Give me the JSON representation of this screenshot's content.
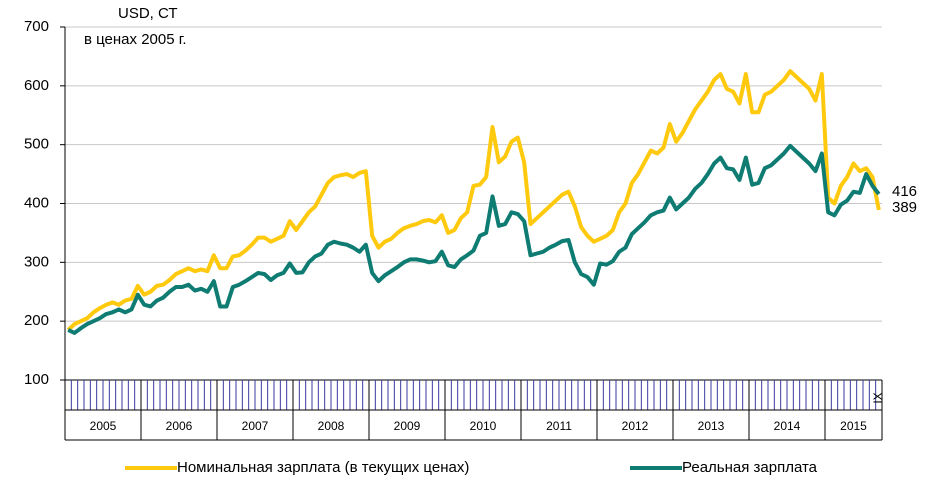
{
  "chart_data": {
    "type": "line",
    "y_label_1": "USD, СТ",
    "y_label_2": "в ценах 2005 г.",
    "years": [
      "2005",
      "2006",
      "2007",
      "2008",
      "2009",
      "2010",
      "2011",
      "2012",
      "2013",
      "2014",
      "2015"
    ],
    "categories": [
      null,
      null,
      null,
      null,
      null,
      null,
      null,
      null,
      null,
      null,
      null,
      null,
      null,
      null,
      null,
      null,
      null,
      null,
      null,
      null,
      null,
      null,
      null,
      null,
      null,
      null,
      null,
      null,
      null,
      null,
      null,
      null,
      null,
      null,
      null,
      null,
      null,
      null,
      null,
      null,
      null,
      null,
      null,
      null,
      null,
      null,
      null,
      null,
      null,
      null,
      null,
      null,
      null,
      null,
      null,
      null,
      null,
      null,
      null,
      null,
      null,
      null,
      null,
      null,
      null,
      null,
      null,
      null,
      null,
      null,
      null,
      null,
      null,
      null,
      null,
      null,
      null,
      null,
      null,
      null,
      null,
      null,
      null,
      null,
      null,
      null,
      null,
      null,
      null,
      null,
      null,
      null,
      null,
      null,
      null,
      null,
      null,
      null,
      null,
      null,
      null,
      null,
      null,
      null,
      null,
      null,
      null,
      null,
      null,
      null,
      null,
      null,
      null,
      null,
      null,
      null,
      null,
      null,
      null,
      null,
      null,
      null,
      null,
      null,
      null,
      null,
      null,
      null,
      "IX"
    ],
    "series": [
      {
        "name": "Номинальная зарплата (в текущих ценах)",
        "color": "#ffc90e",
        "values": [
          185,
          195,
          200,
          205,
          215,
          222,
          228,
          232,
          228,
          235,
          238,
          260,
          245,
          250,
          260,
          262,
          270,
          280,
          285,
          290,
          285,
          288,
          285,
          312,
          290,
          290,
          310,
          312,
          320,
          330,
          342,
          342,
          335,
          340,
          345,
          370,
          355,
          370,
          385,
          395,
          415,
          435,
          445,
          448,
          450,
          445,
          452,
          455,
          345,
          325,
          335,
          340,
          350,
          358,
          362,
          365,
          370,
          372,
          368,
          380,
          350,
          355,
          375,
          385,
          430,
          432,
          445,
          530,
          470,
          480,
          505,
          512,
          470,
          365,
          375,
          385,
          395,
          405,
          415,
          420,
          395,
          360,
          345,
          335,
          340,
          345,
          355,
          385,
          400,
          435,
          450,
          470,
          490,
          485,
          495,
          535,
          505,
          520,
          540,
          560,
          575,
          590,
          610,
          620,
          595,
          590,
          570,
          620,
          555,
          555,
          585,
          590,
          600,
          610,
          625,
          615,
          605,
          595,
          575,
          620,
          410,
          400,
          430,
          445,
          468,
          455,
          460,
          445,
          389
        ]
      },
      {
        "name": "Реальная зарплата",
        "color": "#0e7c72",
        "values": [
          185,
          180,
          188,
          195,
          200,
          205,
          212,
          215,
          220,
          215,
          220,
          245,
          228,
          225,
          235,
          240,
          250,
          258,
          258,
          262,
          252,
          255,
          250,
          268,
          225,
          225,
          258,
          262,
          268,
          275,
          282,
          280,
          270,
          278,
          282,
          298,
          282,
          283,
          300,
          310,
          315,
          330,
          335,
          332,
          330,
          325,
          318,
          330,
          282,
          268,
          278,
          285,
          292,
          300,
          305,
          305,
          303,
          300,
          302,
          318,
          295,
          292,
          305,
          312,
          320,
          345,
          350,
          412,
          362,
          365,
          385,
          382,
          370,
          312,
          315,
          318,
          325,
          330,
          336,
          338,
          300,
          280,
          275,
          262,
          298,
          296,
          302,
          318,
          325,
          348,
          358,
          368,
          380,
          385,
          388,
          410,
          390,
          400,
          410,
          425,
          435,
          450,
          468,
          478,
          460,
          458,
          440,
          478,
          432,
          435,
          460,
          465,
          475,
          485,
          498,
          488,
          478,
          468,
          455,
          485,
          385,
          380,
          398,
          405,
          420,
          418,
          450,
          430,
          416
        ]
      }
    ],
    "ylim": [
      100,
      700
    ],
    "yticks": [
      100,
      200,
      300,
      400,
      500,
      600,
      700
    ],
    "grid": true
  }
}
